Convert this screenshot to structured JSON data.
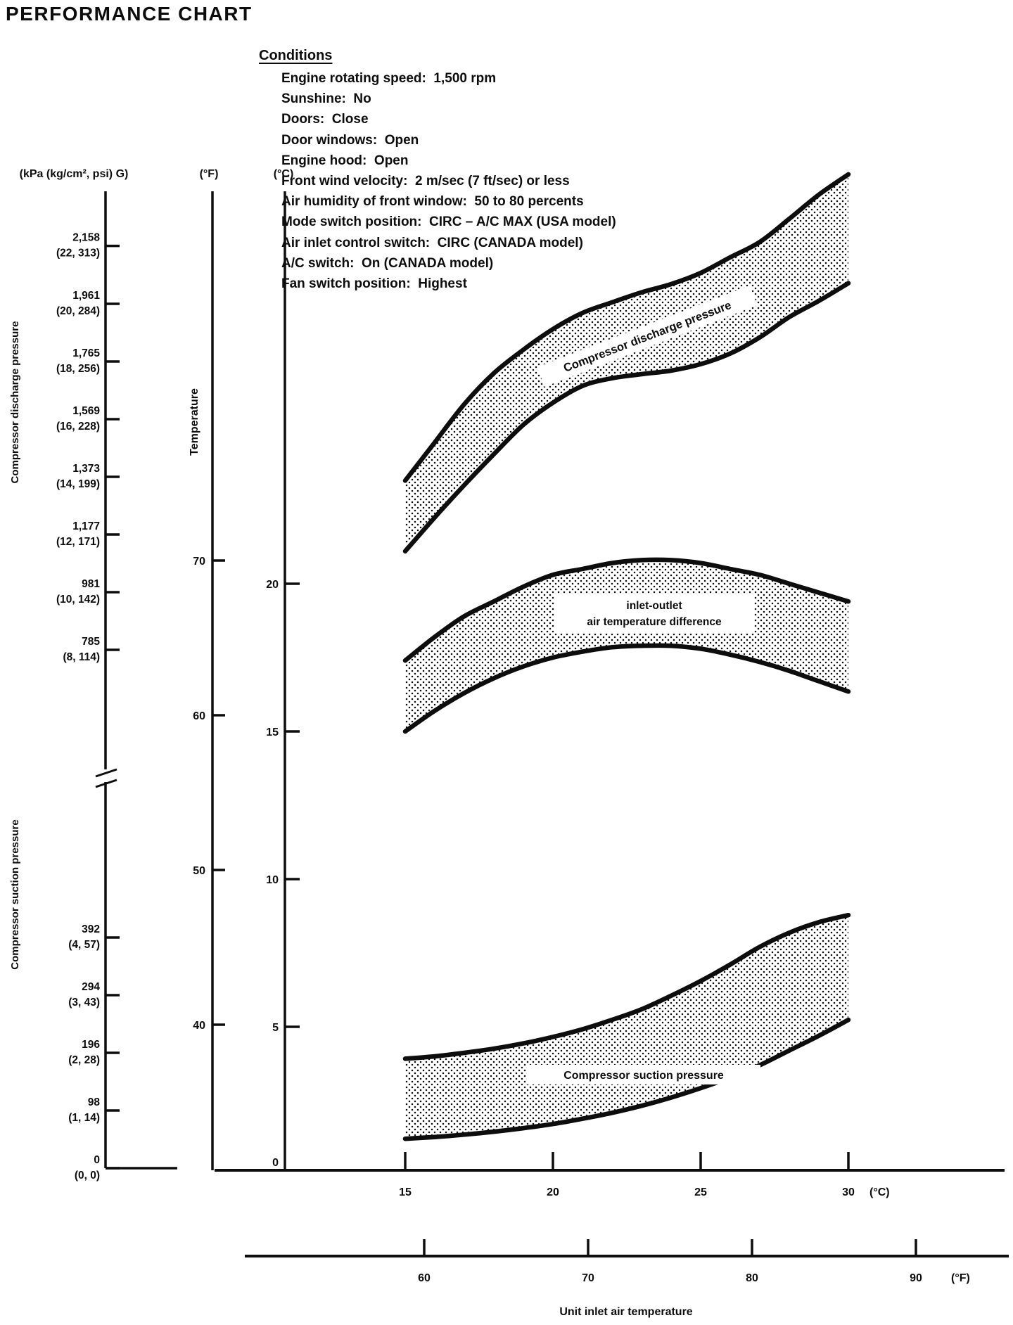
{
  "title": "PERFORMANCE CHART",
  "ink_color": "#0d0d0d",
  "paper_color": "#ffffff",
  "conditions": {
    "heading": "Conditions",
    "items": [
      "Engine rotating speed:  1,500 rpm",
      "Sunshine:  No",
      "Doors:  Close",
      "Door windows:  Open",
      "Engine hood:  Open",
      "Front wind velocity:  2 m/sec (7 ft/sec) or less",
      "Air humidity of front window:  50 to 80 percents",
      "Mode switch position:  CIRC – A/C MAX (USA model)",
      "Air inlet control switch:  CIRC (CANADA model)",
      "A/C switch:  On (CANADA model)",
      "Fan switch position:  Highest"
    ]
  },
  "chart_data": {
    "type": "area",
    "x_axis_c": {
      "label": "(°C)",
      "ticks": [
        15,
        20,
        25,
        30
      ],
      "range": [
        15,
        30
      ]
    },
    "x_axis_f": {
      "label": "(°F)",
      "ticks": [
        60,
        70,
        80,
        90
      ],
      "range": [
        60,
        90
      ]
    },
    "x_caption": "Unit inlet air temperature",
    "temp_axis": {
      "label": "Temperature",
      "f_header": "(°F)",
      "f_ticks": [
        70,
        60,
        50,
        40
      ],
      "c_header": "(°C)",
      "c_ticks": [
        20,
        15,
        10,
        5
      ],
      "c_zero_label": "0"
    },
    "pressure_axis": {
      "header": "(kPa (kg/cm², psi) G)",
      "discharge_label": "Compressor discharge pressure",
      "suction_label": "Compressor suction pressure",
      "discharge_ticks": [
        {
          "kpa": 2158,
          "main": "2,158",
          "sub": "(22, 313)"
        },
        {
          "kpa": 1961,
          "main": "1,961",
          "sub": "(20, 284)"
        },
        {
          "kpa": 1765,
          "main": "1,765",
          "sub": "(18, 256)"
        },
        {
          "kpa": 1569,
          "main": "1,569",
          "sub": "(16, 228)"
        },
        {
          "kpa": 1373,
          "main": "1,373",
          "sub": "(14, 199)"
        },
        {
          "kpa": 1177,
          "main": "1,177",
          "sub": "(12, 171)"
        },
        {
          "kpa": 981,
          "main": "981",
          "sub": "(10, 142)"
        },
        {
          "kpa": 785,
          "main": "785",
          "sub": "(8, 114)"
        }
      ],
      "suction_ticks": [
        {
          "kpa": 392,
          "main": "392",
          "sub": "(4, 57)"
        },
        {
          "kpa": 294,
          "main": "294",
          "sub": "(3, 43)"
        },
        {
          "kpa": 196,
          "main": "196",
          "sub": "(2, 28)"
        },
        {
          "kpa": 98,
          "main": "98",
          "sub": "(1, 14)"
        },
        {
          "kpa": 0,
          "main": "0",
          "sub": "(0, 0)"
        }
      ]
    },
    "bands": [
      {
        "name": "compressor-discharge-pressure",
        "label": "Compressor discharge pressure",
        "scale": "discharge_kpa",
        "x_unit": "inlet_air_temp_c",
        "upper": [
          [
            15,
            1360
          ],
          [
            16,
            1490
          ],
          [
            17,
            1620
          ],
          [
            18,
            1725
          ],
          [
            19,
            1805
          ],
          [
            20,
            1875
          ],
          [
            21,
            1930
          ],
          [
            22,
            1966
          ],
          [
            23,
            2000
          ],
          [
            24,
            2028
          ],
          [
            25,
            2066
          ],
          [
            26,
            2119
          ],
          [
            27,
            2171
          ],
          [
            28,
            2250
          ],
          [
            29,
            2332
          ],
          [
            30,
            2401
          ]
        ],
        "lower": [
          [
            15,
            1120
          ],
          [
            16,
            1235
          ],
          [
            17,
            1345
          ],
          [
            18,
            1450
          ],
          [
            19,
            1550
          ],
          [
            20,
            1625
          ],
          [
            21,
            1682
          ],
          [
            22,
            1708
          ],
          [
            23,
            1722
          ],
          [
            24,
            1734
          ],
          [
            25,
            1756
          ],
          [
            26,
            1792
          ],
          [
            27,
            1847
          ],
          [
            28,
            1916
          ],
          [
            29,
            1971
          ],
          [
            30,
            2031
          ]
        ]
      },
      {
        "name": "inlet-outlet-air-temperature-difference",
        "label_lines": [
          "inlet-outlet",
          "air temperature difference"
        ],
        "scale": "temp_c",
        "x_unit": "inlet_air_temp_c",
        "upper": [
          [
            15,
            17.4
          ],
          [
            16,
            18.2
          ],
          [
            17,
            18.9
          ],
          [
            18,
            19.4
          ],
          [
            19,
            19.9
          ],
          [
            20,
            20.3
          ],
          [
            21,
            20.5
          ],
          [
            22,
            20.7
          ],
          [
            23,
            20.8
          ],
          [
            24,
            20.8
          ],
          [
            25,
            20.7
          ],
          [
            26,
            20.5
          ],
          [
            27,
            20.3
          ],
          [
            28,
            20.0
          ],
          [
            29,
            19.7
          ],
          [
            30,
            19.4
          ]
        ],
        "lower": [
          [
            15,
            15.0
          ],
          [
            16,
            15.7
          ],
          [
            17,
            16.3
          ],
          [
            18,
            16.8
          ],
          [
            19,
            17.2
          ],
          [
            20,
            17.5
          ],
          [
            21,
            17.7
          ],
          [
            22,
            17.85
          ],
          [
            23,
            17.9
          ],
          [
            24,
            17.9
          ],
          [
            25,
            17.8
          ],
          [
            26,
            17.6
          ],
          [
            27,
            17.35
          ],
          [
            28,
            17.05
          ],
          [
            29,
            16.7
          ],
          [
            30,
            16.35
          ]
        ]
      },
      {
        "name": "compressor-suction-pressure",
        "label": "Compressor suction pressure",
        "scale": "suction_kpa",
        "x_unit": "inlet_air_temp_c",
        "upper": [
          [
            15,
            186
          ],
          [
            16,
            190
          ],
          [
            17,
            196
          ],
          [
            18,
            203
          ],
          [
            19,
            212
          ],
          [
            20,
            223
          ],
          [
            21,
            236
          ],
          [
            22,
            252
          ],
          [
            23,
            270
          ],
          [
            24,
            293
          ],
          [
            25,
            318
          ],
          [
            26,
            346
          ],
          [
            27,
            376
          ],
          [
            28,
            400
          ],
          [
            29,
            418
          ],
          [
            30,
            430
          ]
        ],
        "lower": [
          [
            15,
            50
          ],
          [
            16,
            53
          ],
          [
            17,
            57
          ],
          [
            18,
            62
          ],
          [
            19,
            68
          ],
          [
            20,
            75
          ],
          [
            21,
            84
          ],
          [
            22,
            94
          ],
          [
            23,
            106
          ],
          [
            24,
            120
          ],
          [
            25,
            136
          ],
          [
            26,
            154
          ],
          [
            27,
            175
          ],
          [
            28,
            200
          ],
          [
            29,
            225
          ],
          [
            30,
            252
          ]
        ]
      }
    ]
  }
}
